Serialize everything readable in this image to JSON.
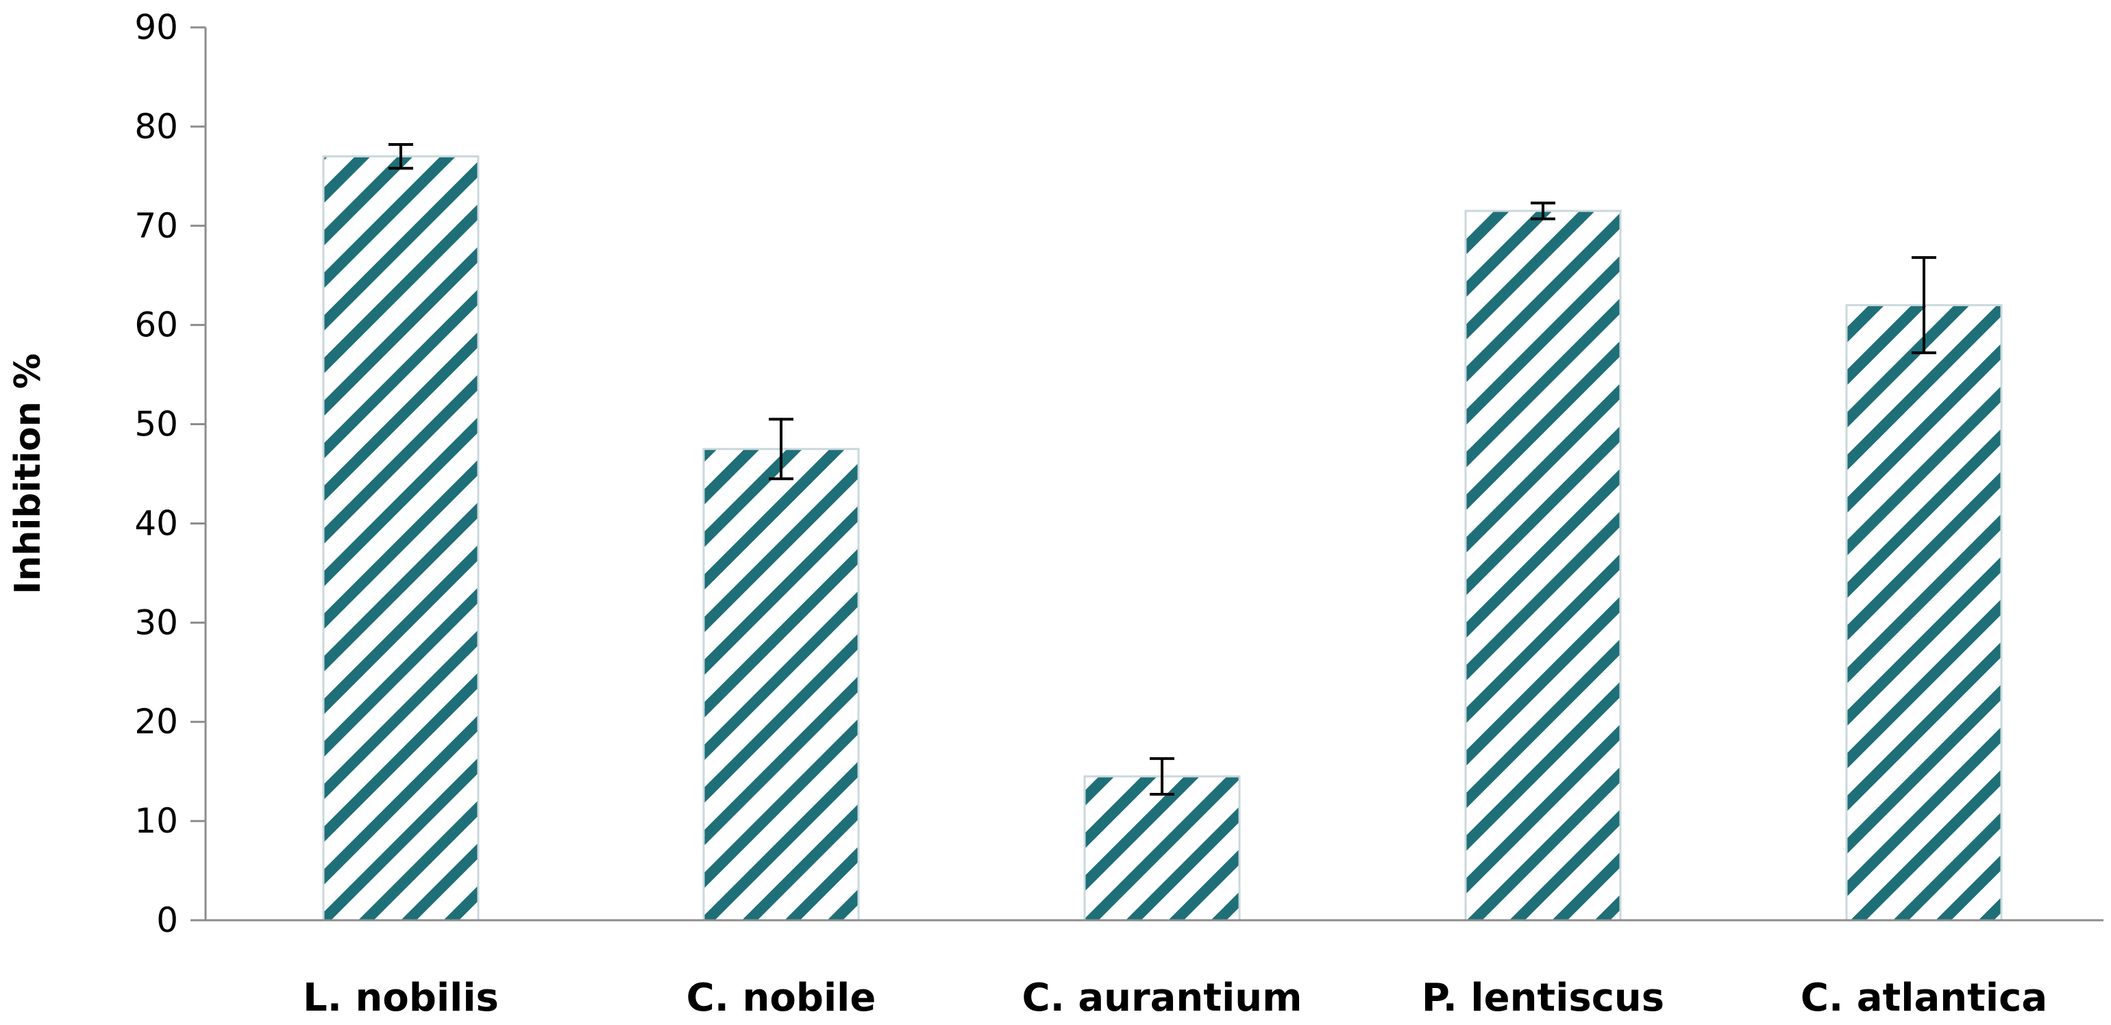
{
  "chart_data": {
    "type": "bar",
    "title": "",
    "xlabel": "",
    "ylabel": "Inhibition %",
    "ylim": [
      0,
      90
    ],
    "yticks": [
      0,
      10,
      20,
      30,
      40,
      50,
      60,
      70,
      80,
      90
    ],
    "grid": false,
    "legend": "none",
    "categories": [
      "L. nobilis",
      "C. nobile",
      "C. aurantium",
      "P. lentiscus",
      "C. atlantica"
    ],
    "values": [
      77,
      47.5,
      14.5,
      71.5,
      62
    ],
    "error": [
      1.2,
      3,
      1.8,
      0.8,
      4.8
    ],
    "colors": {
      "bar_stripe": "#1f6f78",
      "bar_background": "#ffffff",
      "bar_edge": "#c9d8dc",
      "axis": "#8c8c8c",
      "error_bar": "#000000"
    }
  }
}
